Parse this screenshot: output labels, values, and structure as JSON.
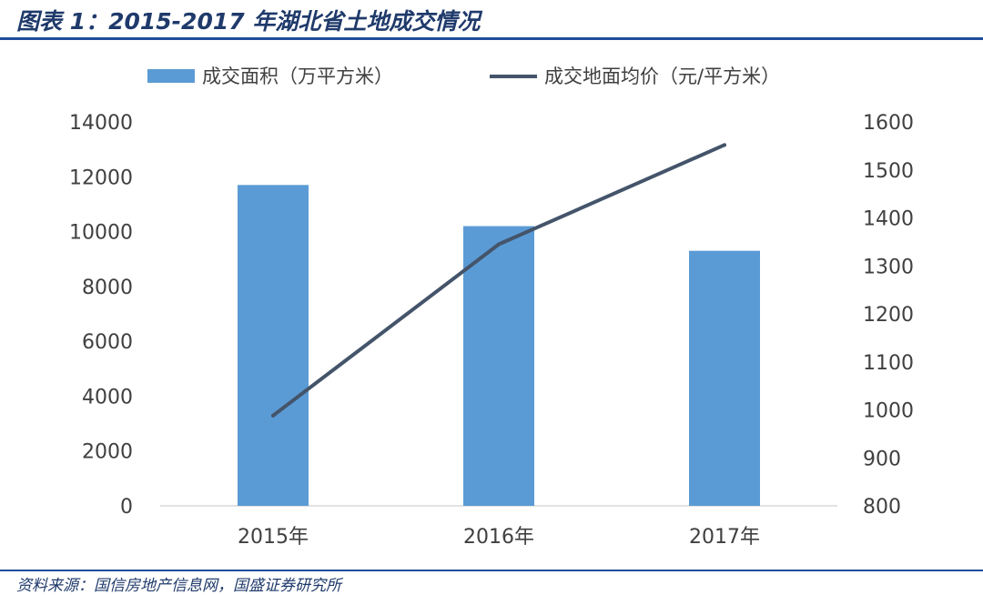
{
  "figure": {
    "title": "图表 1：2015-2017 年湖北省土地成交情况",
    "source": "资料来源：国信房地产信息网，国盛证券研究所"
  },
  "colors": {
    "bar": "#5b9bd5",
    "line": "#44546a",
    "rule": "#1f4e9c",
    "title": "#1f3a6b"
  },
  "chart_data": {
    "type": "bar",
    "categories": [
      "2015年",
      "2016年",
      "2017年"
    ],
    "series": [
      {
        "name": "成交面积（万平方米）",
        "type": "bar",
        "axis": "left",
        "values": [
          11700,
          10200,
          9300
        ]
      },
      {
        "name": "成交地面均价（元/平方米）",
        "type": "line",
        "axis": "right",
        "values": [
          988,
          1345,
          1552
        ]
      }
    ],
    "y_left": {
      "min": 0,
      "max": 14000,
      "ticks": [
        "0",
        "2000",
        "4000",
        "6000",
        "8000",
        "10000",
        "12000",
        "14000"
      ]
    },
    "y_right": {
      "min": 800,
      "max": 1600,
      "ticks": [
        "800",
        "900",
        "1000",
        "1100",
        "1200",
        "1300",
        "1400",
        "1500",
        "1600"
      ]
    },
    "grid": false,
    "legend": "top"
  }
}
